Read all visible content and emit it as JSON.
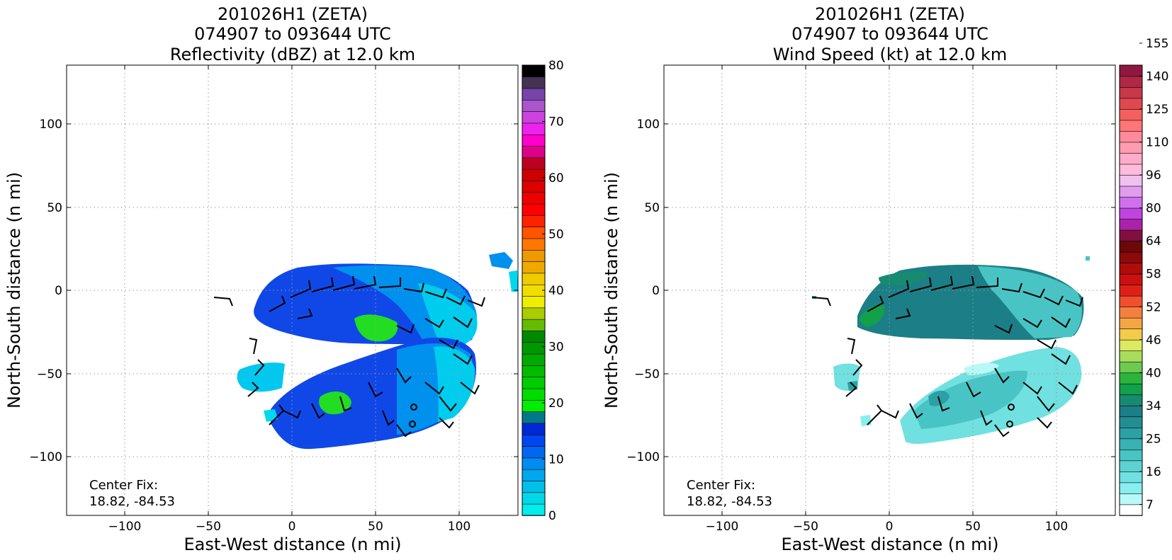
{
  "chart_data": [
    {
      "type": "heatmap",
      "title_lines": [
        "201026H1 (ZETA)",
        "074907 to 093644 UTC",
        "Reflectivity (dBZ) at 12.0 km"
      ],
      "xlabel": "East-West distance (n mi)",
      "ylabel": "North-South distance (n mi)",
      "xlim": [
        -135,
        135
      ],
      "ylim": [
        -135,
        135
      ],
      "xticks": [
        -100,
        -50,
        0,
        50,
        100
      ],
      "yticks": [
        -100,
        -50,
        0,
        50,
        100
      ],
      "x_tick_labels": [
        "−100",
        "−50",
        "0",
        "50",
        "100"
      ],
      "y_tick_labels": [
        "−100",
        "−50",
        "0",
        "50",
        "100"
      ],
      "grid": true,
      "annotation": [
        "Center Fix:",
        "18.82, -84.53"
      ],
      "colorbar": {
        "colors": [
          "#00eeee",
          "#00d8e8",
          "#00c0ea",
          "#00a6ee",
          "#008cf0",
          "#0068f0",
          "#0046f0",
          "#0028d8",
          "#007a8a",
          "#00ee00",
          "#00dc00",
          "#00cc00",
          "#00bb00",
          "#00aa00",
          "#009800",
          "#008800",
          "#66bb00",
          "#aacc00",
          "#eeee00",
          "#f2dd00",
          "#eecc00",
          "#eeaa00",
          "#ee9900",
          "#ff7700",
          "#ff5500",
          "#ff2200",
          "#ff0000",
          "#ee0000",
          "#dd0000",
          "#cc0000",
          "#bb0022",
          "#dd0088",
          "#ff00cc",
          "#ee22ee",
          "#cc44dd",
          "#aa55cc",
          "#7744aa",
          "#443355",
          "#000000"
        ],
        "tick_values": [
          0,
          10,
          20,
          30,
          40,
          50,
          60,
          70,
          80
        ],
        "tick_labels": [
          "0",
          "10",
          "20",
          "30",
          "40",
          "50",
          "60",
          "70",
          "80"
        ],
        "range": [
          0,
          80
        ]
      }
    },
    {
      "type": "heatmap",
      "title_lines": [
        "201026H1 (ZETA)",
        "074907 to 093644 UTC",
        "Wind Speed (kt) at 12.0 km"
      ],
      "xlabel": "East-West distance (n mi)",
      "ylabel": "North-South distance (n mi)",
      "xlim": [
        -135,
        135
      ],
      "ylim": [
        -135,
        135
      ],
      "xticks": [
        -100,
        -50,
        0,
        50,
        100
      ],
      "yticks": [
        -100,
        -50,
        0,
        50,
        100
      ],
      "x_tick_labels": [
        "−100",
        "−50",
        "0",
        "50",
        "100"
      ],
      "y_tick_labels": [
        "−100",
        "−50",
        "0",
        "50",
        "100"
      ],
      "grid": true,
      "annotation": [
        "Center Fix:",
        "18.82, -84.53"
      ],
      "colorbar": {
        "colors": [
          "#ffffff",
          "#b8f8f8",
          "#88eeee",
          "#70e0e0",
          "#5cd2d2",
          "#48c4c4",
          "#38b2b4",
          "#2ca0a4",
          "#228e94",
          "#1c7e86",
          "#188a72",
          "#12a04a",
          "#2ab43c",
          "#6cca50",
          "#a8dc5c",
          "#dcea62",
          "#f2cc4a",
          "#f4a644",
          "#f48040",
          "#f05030",
          "#e02018",
          "#cc1010",
          "#b00c0c",
          "#8c0a0a",
          "#6c0808",
          "#801040",
          "#aa22aa",
          "#c044e0",
          "#d070ee",
          "#e09cee",
          "#f0c0ee",
          "#ffbcdc",
          "#ffacc8",
          "#ff9cb0",
          "#ff8a9a",
          "#ff7676",
          "#f46060",
          "#e04850",
          "#c83848",
          "#b02844",
          "#901840"
        ],
        "tick_values": [
          7,
          16,
          25,
          34,
          40,
          46,
          52,
          58,
          64,
          80,
          96,
          110,
          125,
          140,
          155
        ],
        "tick_labels": [
          "7",
          "16",
          "25",
          "34",
          "40",
          "46",
          "52",
          "58",
          "64",
          "80",
          "96",
          "110",
          "125",
          "140",
          "155"
        ]
      }
    }
  ]
}
